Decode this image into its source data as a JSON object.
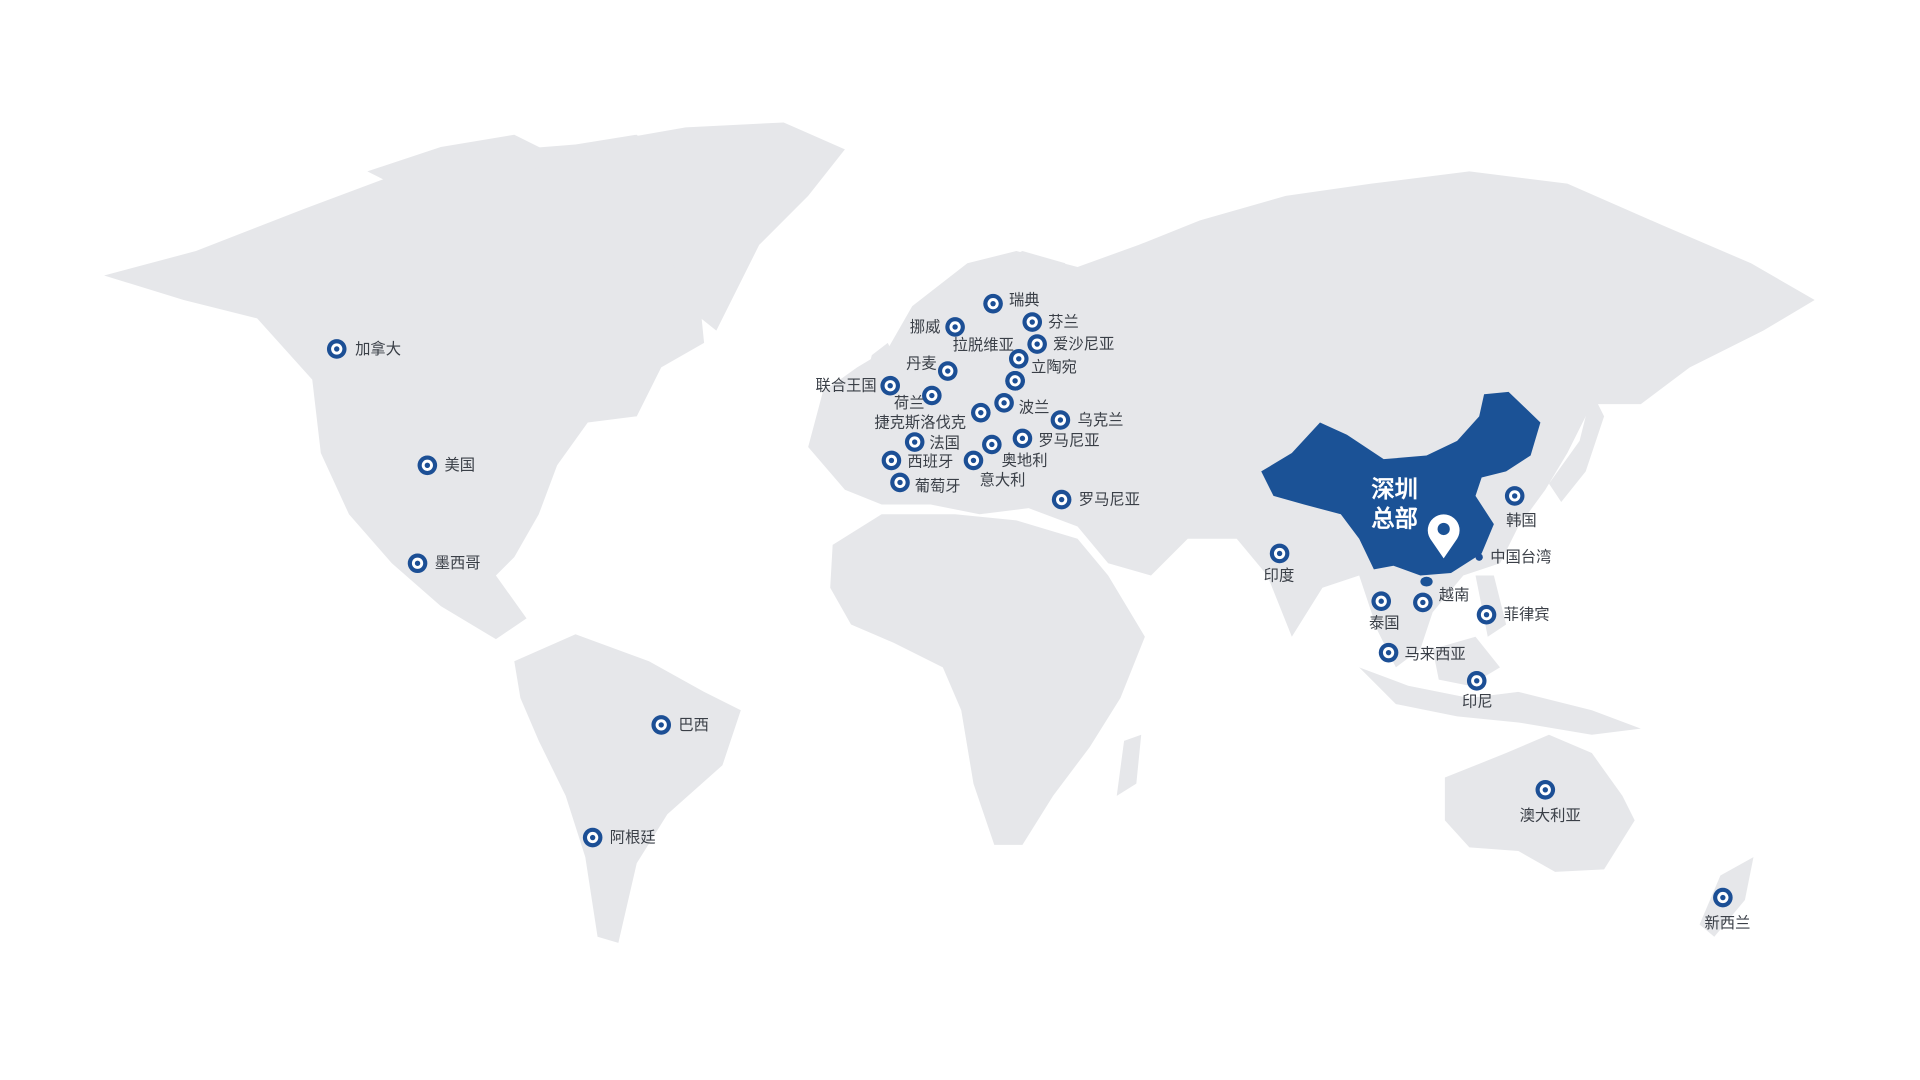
{
  "colors": {
    "land": "#e6e7ea",
    "highlight_country": "#1b5296",
    "marker": "#1c4f95",
    "label": "#3a3f47"
  },
  "headquarters": {
    "line1": "深圳",
    "line2": "总部",
    "icon": "map-pin-icon"
  },
  "markers": [
    {
      "label": "加拿大"
    },
    {
      "label": "美国"
    },
    {
      "label": "墨西哥"
    },
    {
      "label": "巴西"
    },
    {
      "label": "阿根廷"
    },
    {
      "label": "瑞典"
    },
    {
      "label": "挪威"
    },
    {
      "label": "芬兰"
    },
    {
      "label": "爱沙尼亚"
    },
    {
      "label": "拉脱维亚"
    },
    {
      "label": "立陶宛"
    },
    {
      "label": ""
    },
    {
      "label": "丹麦"
    },
    {
      "label": "联合王国"
    },
    {
      "label": "荷兰"
    },
    {
      "label": "波兰"
    },
    {
      "label": "捷克斯洛伐克"
    },
    {
      "label": "乌克兰"
    },
    {
      "label": "法国"
    },
    {
      "label": "罗马尼亚"
    },
    {
      "label": "奥地利"
    },
    {
      "label": "西班牙"
    },
    {
      "label": "意大利"
    },
    {
      "label": "葡萄牙"
    },
    {
      "label": "罗马尼亚"
    },
    {
      "label": "印度"
    },
    {
      "label": "泰国"
    },
    {
      "label": "越南"
    },
    {
      "label": "菲律宾"
    },
    {
      "label": "马来西亚"
    },
    {
      "label": "印尼"
    },
    {
      "label": "韩国"
    },
    {
      "label": "中国台湾"
    },
    {
      "label": "澳大利亚"
    },
    {
      "label": "新西兰"
    }
  ]
}
